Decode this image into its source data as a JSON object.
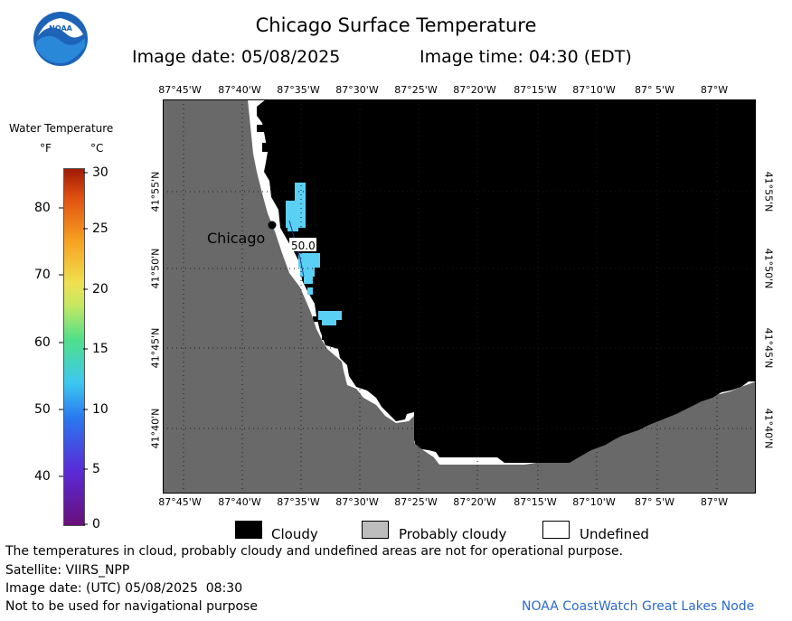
{
  "header": {
    "title": "Chicago Surface Temperature",
    "image_date": "Image date: 05/08/2025",
    "image_time": "Image time: 04:30 (EDT)"
  },
  "logo": {
    "text": "NOAA"
  },
  "map": {
    "lon_labels": [
      "87°45'W",
      "87°40'W",
      "87°35'W",
      "87°30'W",
      "87°25'W",
      "87°20'W",
      "87°15'W",
      "87°10'W",
      "87° 5'W",
      "87°W"
    ],
    "lat_labels": [
      "41°55'N",
      "41°50'N",
      "41°45'N",
      "41°40'N"
    ],
    "city_label": "Chicago",
    "isotherm_label": "50.0",
    "colors": {
      "land": "#696969",
      "cloudy": "#000000",
      "water": "#5bd0f5",
      "undefined": "#ffffff",
      "grid": "#2a2a2a"
    }
  },
  "legend": {
    "title": "Water Temperature",
    "unit_f": "°F",
    "unit_c": "°C",
    "f_ticks": [
      "80",
      "70",
      "60",
      "50",
      "40"
    ],
    "c_ticks": [
      "30",
      "25",
      "20",
      "15",
      "10",
      "5",
      "0"
    ]
  },
  "key": {
    "cloudy": "Cloudy",
    "probably_cloudy": "Probably cloudy",
    "undefined": "Undefined",
    "colors": {
      "cloudy": "#000000",
      "probably_cloudy": "#bdbdbd",
      "undefined": "#ffffff"
    }
  },
  "footer": {
    "note": "The temperatures in cloud, probably cloudy and undefined areas are not for operational purpose.",
    "satellite": "Satellite: VIIRS_NPP",
    "utc_date": "Image date: (UTC) 05/08/2025  08:30",
    "nav_warning": "Not to be used for navigational purpose",
    "node": "NOAA CoastWatch Great Lakes Node"
  }
}
